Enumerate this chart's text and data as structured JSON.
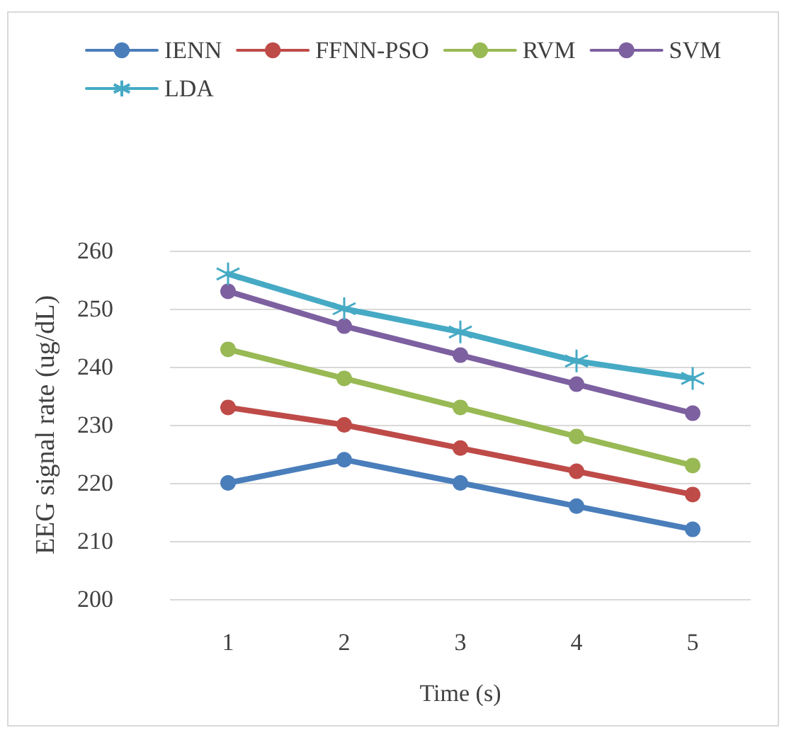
{
  "chart_data": {
    "type": "line",
    "xlabel": "Time (s)",
    "ylabel": "EEG signal rate (ug/dL)",
    "categories": [
      "1",
      "2",
      "3",
      "4",
      "5"
    ],
    "series": [
      {
        "name": "IENN",
        "color": "#4a7ebb",
        "marker": "circle",
        "values": [
          220,
          224,
          220,
          216,
          212
        ]
      },
      {
        "name": "FFNN-PSO",
        "color": "#be4b48",
        "marker": "circle",
        "values": [
          233,
          230,
          226,
          222,
          218
        ]
      },
      {
        "name": "RVM",
        "color": "#98b954",
        "marker": "circle",
        "values": [
          243,
          238,
          233,
          228,
          223
        ]
      },
      {
        "name": "SVM",
        "color": "#7d60a0",
        "marker": "circle",
        "values": [
          253,
          247,
          242,
          237,
          232
        ]
      },
      {
        "name": "LDA",
        "color": "#46aac5",
        "marker": "cross",
        "values": [
          256,
          250,
          246,
          241,
          238
        ]
      }
    ],
    "ylim": [
      200,
      260
    ],
    "yticks": [
      200,
      210,
      220,
      230,
      240,
      250,
      260
    ],
    "grid": "y",
    "legend": "top",
    "line_style": "solid"
  }
}
